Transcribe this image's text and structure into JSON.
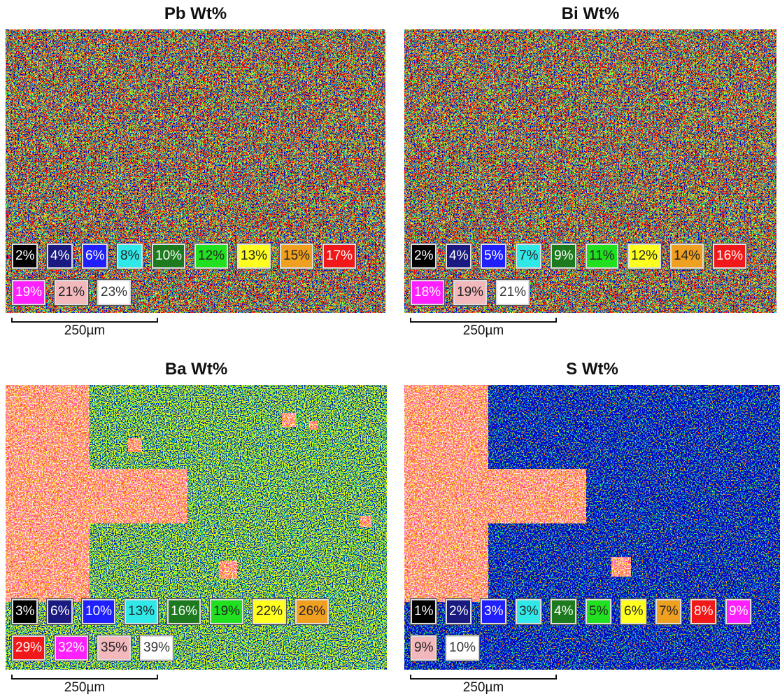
{
  "panels": [
    {
      "title": "Pb Wt%",
      "legend": [
        "2%",
        "4%",
        "6%",
        "8%",
        "10%",
        "12%",
        "13%",
        "15%",
        "17%",
        "19%",
        "21%",
        "23%"
      ],
      "scale_bar": "250µm"
    },
    {
      "title": "Bi Wt%",
      "legend": [
        "2%",
        "4%",
        "5%",
        "7%",
        "9%",
        "11%",
        "12%",
        "14%",
        "16%",
        "18%",
        "19%",
        "21%"
      ],
      "scale_bar": "250µm"
    },
    {
      "title": "Ba Wt%",
      "legend": [
        "3%",
        "6%",
        "10%",
        "13%",
        "16%",
        "19%",
        "22%",
        "26%",
        "29%",
        "32%",
        "35%",
        "39%"
      ],
      "scale_bar": "250µm"
    },
    {
      "title": "S Wt%",
      "legend": [
        "1%",
        "2%",
        "3%",
        "3%",
        "4%",
        "5%",
        "6%",
        "7%",
        "8%",
        "9%",
        "9%",
        "10%"
      ],
      "scale_bar": "250µm"
    }
  ]
}
